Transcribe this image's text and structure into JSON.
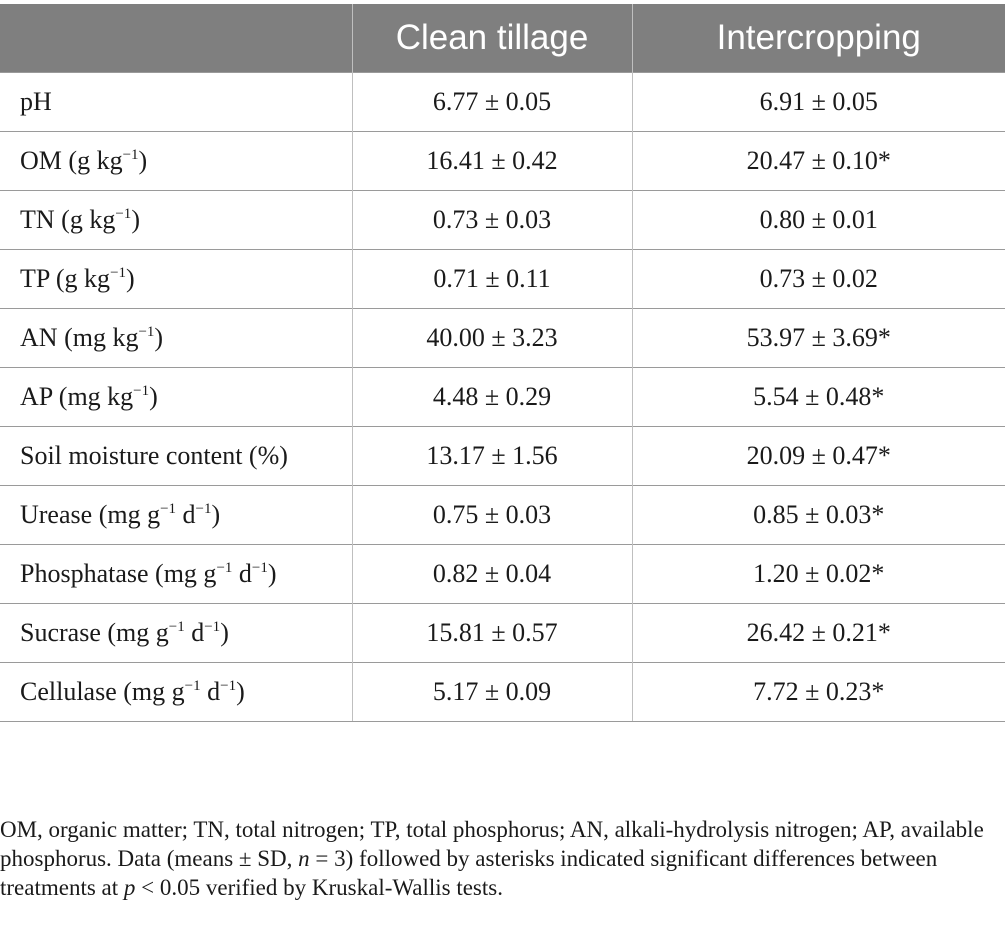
{
  "table": {
    "headers": [
      "",
      "Clean tillage",
      "Intercropping"
    ],
    "rows": [
      {
        "label": "pH",
        "unit": "",
        "clean": "6.77 ± 0.05",
        "inter": "6.91 ± 0.05"
      },
      {
        "label": "OM",
        "unit": " (g kg",
        "unit_sup": "−1",
        "unit_end": ")",
        "clean": "16.41 ± 0.42",
        "inter": "20.47 ± 0.10*"
      },
      {
        "label": "TN",
        "unit": " (g kg",
        "unit_sup": "−1",
        "unit_end": ")",
        "clean": "0.73 ± 0.03",
        "inter": "0.80 ± 0.01"
      },
      {
        "label": "TP",
        "unit": " (g kg",
        "unit_sup": "−1",
        "unit_end": ")",
        "clean": "0.71 ± 0.11",
        "inter": "0.73 ± 0.02"
      },
      {
        "label": "AN",
        "unit": " (mg kg",
        "unit_sup": "−1",
        "unit_end": ")",
        "clean": "40.00 ± 3.23",
        "inter": "53.97 ± 3.69*"
      },
      {
        "label": "AP",
        "unit": " (mg kg",
        "unit_sup": "−1",
        "unit_end": ")",
        "clean": "4.48 ± 0.29",
        "inter": "5.54 ± 0.48*"
      },
      {
        "label": "Soil moisture content (%)",
        "unit": "",
        "clean": "13.17 ± 1.56",
        "inter": "20.09 ± 0.47*"
      },
      {
        "label": "Urease",
        "unit": " (mg g",
        "unit_sup": "−1",
        "unit_mid": " d",
        "unit_sup2": "−1",
        "unit_end": ")",
        "clean": "0.75 ± 0.03",
        "inter": "0.85 ± 0.03*"
      },
      {
        "label": "Phosphatase",
        "unit": " (mg g",
        "unit_sup": "−1",
        "unit_mid": " d",
        "unit_sup2": "−1",
        "unit_end": ")",
        "clean": "0.82 ± 0.04",
        "inter": "1.20 ± 0.02*"
      },
      {
        "label": "Sucrase",
        "unit": " (mg g",
        "unit_sup": "−1",
        "unit_mid": " d",
        "unit_sup2": "−1",
        "unit_end": ")",
        "clean": "15.81 ± 0.57",
        "inter": "26.42 ± 0.21*"
      },
      {
        "label": "Cellulase",
        "unit": " (mg g",
        "unit_sup": "−1",
        "unit_mid": " d",
        "unit_sup2": "−1",
        "unit_end": ")",
        "clean": "5.17 ± 0.09",
        "inter": "7.72 ± 0.23*"
      }
    ]
  },
  "footnote": {
    "part1": "OM, organic matter; TN, total nitrogen; TP, total phosphorus; AN, alkali-hydrolysis nitrogen; AP, available phosphorus. Data (means ± SD, ",
    "n_italic": "n",
    "part2": " = 3) followed by asterisks indicated significant differences between treatments at ",
    "p_italic": "p",
    "part3": " < 0.05 verified by Kruskal-Wallis tests."
  }
}
